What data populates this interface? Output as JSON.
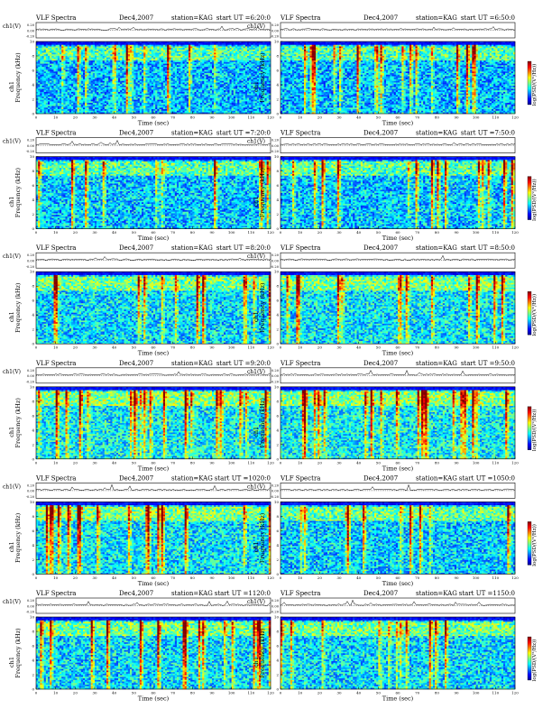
{
  "page": {
    "common": {
      "title": "VLF Spectra",
      "date": "Dec4,2007",
      "station": "station=KAG",
      "start_prefix": "start  UT =",
      "ch_label": "ch1(V)",
      "ylabel_prefix": "ch1",
      "ylabel": "Frequency  (kHz)",
      "xlabel": "Time  (sec)",
      "colorbar_label": "log(PSD/(V²/Hz))"
    }
  },
  "chart_data": [
    {
      "type": "heatmap",
      "start": "6:20:0",
      "x_ticks": [
        "0",
        "10",
        "20",
        "30",
        "40",
        "50",
        "60",
        "70",
        "80",
        "90",
        "100",
        "110",
        "120"
      ],
      "y_ticks": [
        "0",
        "2",
        "4",
        "6",
        "8",
        "10"
      ],
      "ch_ticks": [
        "0.20",
        "0.00",
        "-0.20"
      ],
      "xlim": [
        0,
        120
      ],
      "ylim": [
        0,
        10
      ],
      "intensity": 0.35
    },
    {
      "type": "heatmap",
      "start": "6:50:0",
      "x_ticks": [
        "0",
        "10",
        "20",
        "30",
        "40",
        "50",
        "60",
        "70",
        "80",
        "90",
        "100",
        "110",
        "120"
      ],
      "y_ticks": [
        "0",
        "2",
        "4",
        "6",
        "8",
        "10"
      ],
      "ch_ticks": [
        "0.20",
        "0.00",
        "-0.20"
      ],
      "xlim": [
        0,
        120
      ],
      "ylim": [
        0,
        10
      ],
      "intensity": 0.35
    },
    {
      "type": "heatmap",
      "start": "7:20:0",
      "x_ticks": [
        "0",
        "10",
        "20",
        "30",
        "40",
        "50",
        "60",
        "70",
        "80",
        "90",
        "100",
        "110",
        "120"
      ],
      "y_ticks": [
        "0",
        "2",
        "4",
        "6",
        "8",
        "10"
      ],
      "ch_ticks": [
        "0.20",
        "0.00",
        "-0.20"
      ],
      "xlim": [
        0,
        120
      ],
      "ylim": [
        0,
        10
      ],
      "intensity": 0.4
    },
    {
      "type": "heatmap",
      "start": "7:50:0",
      "x_ticks": [
        "0",
        "10",
        "20",
        "30",
        "40",
        "50",
        "60",
        "70",
        "80",
        "90",
        "100",
        "110",
        "120"
      ],
      "y_ticks": [
        "0",
        "2",
        "4",
        "6",
        "8",
        "10"
      ],
      "ch_ticks": [
        "0.20",
        "0.00",
        "-0.20"
      ],
      "xlim": [
        0,
        120
      ],
      "ylim": [
        0,
        10
      ],
      "intensity": 0.4
    },
    {
      "type": "heatmap",
      "start": "8:20:0",
      "x_ticks": [
        "0",
        "10",
        "20",
        "30",
        "40",
        "50",
        "60",
        "70",
        "80",
        "90",
        "100",
        "110",
        "120"
      ],
      "y_ticks": [
        "0",
        "2",
        "4",
        "6",
        "8",
        "10"
      ],
      "ch_ticks": [
        "0.20",
        "0.00",
        "-0.20"
      ],
      "xlim": [
        0,
        120
      ],
      "ylim": [
        0,
        10
      ],
      "intensity": 0.5
    },
    {
      "type": "heatmap",
      "start": "8:50:0",
      "x_ticks": [
        "0",
        "10",
        "20",
        "30",
        "40",
        "50",
        "60",
        "70",
        "80",
        "90",
        "100",
        "110",
        "120"
      ],
      "y_ticks": [
        "0",
        "2",
        "4",
        "6",
        "8",
        "10"
      ],
      "ch_ticks": [
        "0.20",
        "0.00",
        "-0.20"
      ],
      "xlim": [
        0,
        120
      ],
      "ylim": [
        0,
        10
      ],
      "intensity": 0.55
    },
    {
      "type": "heatmap",
      "start": "9:20:0",
      "x_ticks": [
        "0",
        "10",
        "20",
        "30",
        "40",
        "50",
        "60",
        "70",
        "80",
        "90",
        "100",
        "110",
        "120"
      ],
      "y_ticks": [
        "0",
        "2",
        "4",
        "6",
        "8",
        "10"
      ],
      "ch_ticks": [
        "0.20",
        "0.00",
        "-0.20"
      ],
      "xlim": [
        0,
        120
      ],
      "ylim": [
        0,
        10
      ],
      "intensity": 0.6
    },
    {
      "type": "heatmap",
      "start": "9:50:0",
      "x_ticks": [
        "0",
        "10",
        "20",
        "30",
        "40",
        "50",
        "60",
        "70",
        "80",
        "90",
        "100",
        "110",
        "120"
      ],
      "y_ticks": [
        "0",
        "2",
        "4",
        "6",
        "8",
        "10"
      ],
      "ch_ticks": [
        "0.20",
        "0.00",
        "-0.20"
      ],
      "xlim": [
        0,
        120
      ],
      "ylim": [
        0,
        10
      ],
      "intensity": 0.6
    },
    {
      "type": "heatmap",
      "start": "1020:0",
      "x_ticks": [
        "0",
        "10",
        "20",
        "30",
        "40",
        "50",
        "60",
        "70",
        "80",
        "90",
        "100",
        "110",
        "120"
      ],
      "y_ticks": [
        "0",
        "2",
        "4",
        "6",
        "8",
        "10"
      ],
      "ch_ticks": [
        "0.20",
        "0.00",
        "-0.20"
      ],
      "xlim": [
        0,
        120
      ],
      "ylim": [
        0,
        10
      ],
      "intensity": 0.55
    },
    {
      "type": "heatmap",
      "start": "1050:0",
      "x_ticks": [
        "0",
        "10",
        "20",
        "30",
        "40",
        "50",
        "60",
        "70",
        "80",
        "90",
        "100",
        "110",
        "120"
      ],
      "y_ticks": [
        "0",
        "2",
        "4",
        "6",
        "8",
        "10"
      ],
      "ch_ticks": [
        "0.20",
        "0.00",
        "-0.20"
      ],
      "xlim": [
        0,
        120
      ],
      "ylim": [
        0,
        10
      ],
      "intensity": 0.45
    },
    {
      "type": "heatmap",
      "start": "1120:0",
      "x_ticks": [
        "0",
        "10",
        "20",
        "30",
        "40",
        "50",
        "60",
        "70",
        "80",
        "90",
        "100",
        "110",
        "120"
      ],
      "y_ticks": [
        "0",
        "2",
        "4",
        "6",
        "8",
        "10"
      ],
      "ch_ticks": [
        "0.20",
        "0.00",
        "-0.20"
      ],
      "xlim": [
        0,
        120
      ],
      "ylim": [
        0,
        10
      ],
      "intensity": 0.5
    },
    {
      "type": "heatmap",
      "start": "1150:0",
      "x_ticks": [
        "0",
        "10",
        "20",
        "30",
        "40",
        "50",
        "60",
        "70",
        "80",
        "90",
        "100",
        "110",
        "120"
      ],
      "y_ticks": [
        "0",
        "2",
        "4",
        "6",
        "8",
        "10"
      ],
      "ch_ticks": [
        "0.20",
        "0.00",
        "-0.20"
      ],
      "xlim": [
        0,
        120
      ],
      "ylim": [
        0,
        10
      ],
      "intensity": 0.5
    }
  ]
}
